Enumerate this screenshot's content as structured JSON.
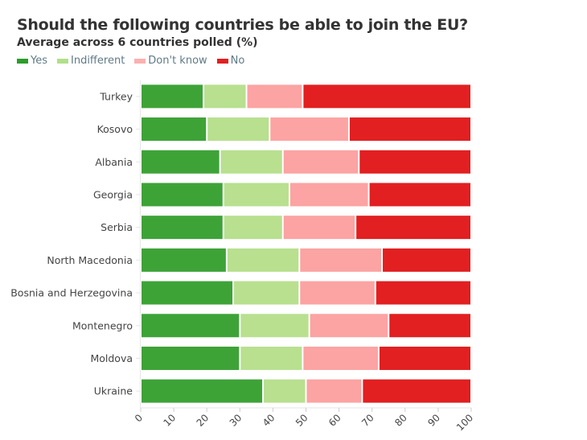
{
  "chart_data": {
    "type": "bar",
    "orientation": "horizontal",
    "stacked": true,
    "title": "Should the following countries be able to join the EU?",
    "subtitle": "Average across 6 countries polled (%)",
    "categories": [
      "Turkey",
      "Kosovo",
      "Albania",
      "Georgia",
      "Serbia",
      "North Macedonia",
      "Bosnia and Herzegovina",
      "Montenegro",
      "Moldova",
      "Ukraine"
    ],
    "series": [
      {
        "name": "Yes",
        "color": "#3da337",
        "values": [
          19,
          20,
          24,
          25,
          25,
          26,
          28,
          30,
          30,
          37
        ]
      },
      {
        "name": "Indifferent",
        "color": "#b8e08f",
        "values": [
          13,
          19,
          19,
          20,
          18,
          22,
          20,
          21,
          19,
          13
        ]
      },
      {
        "name": "Don't know",
        "color": "#fca3a3",
        "values": [
          17,
          24,
          23,
          24,
          22,
          25,
          23,
          24,
          23,
          17
        ]
      },
      {
        "name": "No",
        "color": "#e21f21",
        "values": [
          51,
          37,
          34,
          31,
          35,
          27,
          29,
          25,
          28,
          33
        ]
      }
    ],
    "xlim": [
      0,
      100
    ],
    "xticks": [
      "0",
      "10",
      "20",
      "30",
      "40",
      "50",
      "60",
      "70",
      "80",
      "90",
      "100"
    ],
    "legend_position": "top-left",
    "grid": false
  }
}
